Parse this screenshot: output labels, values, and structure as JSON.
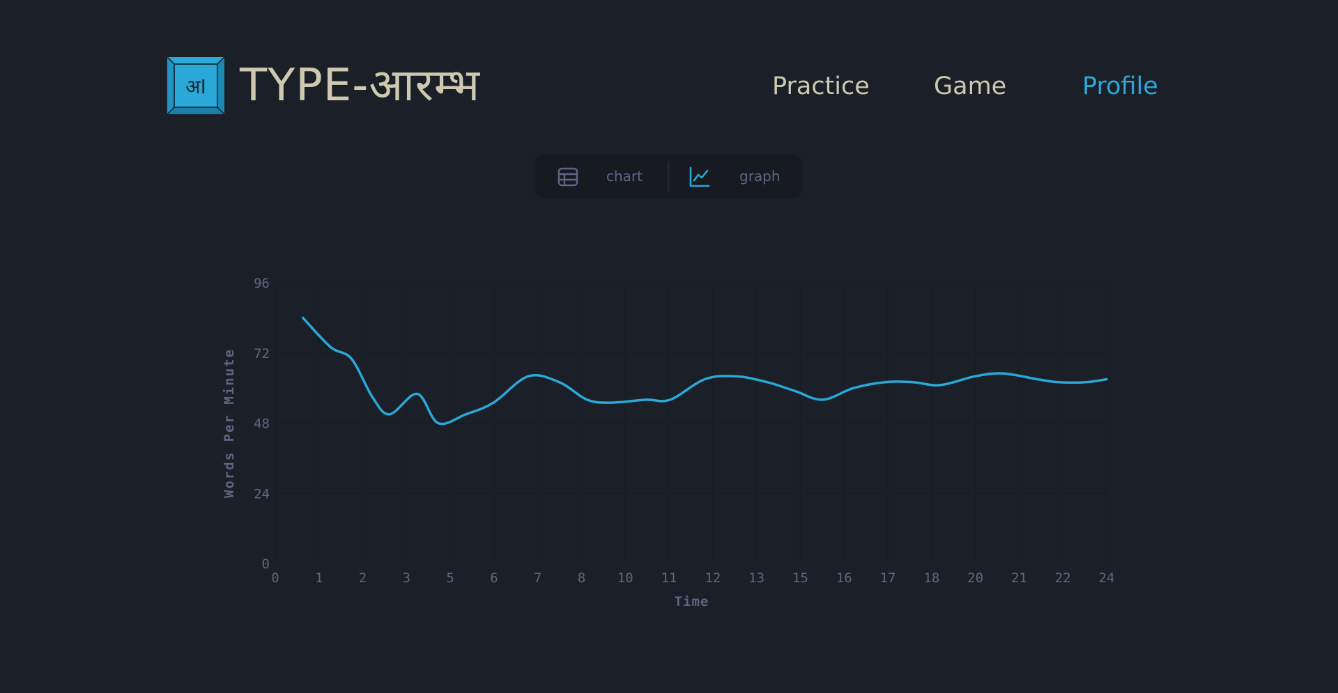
{
  "brand": {
    "name": "TYPE-आरम्भ",
    "logo_glyph": "अI"
  },
  "nav": {
    "items": [
      {
        "label": "Practice",
        "active": false
      },
      {
        "label": "Game",
        "active": false
      },
      {
        "label": "Profile",
        "active": true
      }
    ]
  },
  "view_toggle": {
    "chart_label": "chart",
    "graph_label": "graph",
    "chart_icon": "table-icon",
    "graph_icon": "line-chart-icon",
    "selected": "graph"
  },
  "colors": {
    "background": "#1b1f27",
    "accent": "#2aa8d8",
    "text": "#cfc9b1",
    "muted": "#5b6784"
  },
  "chart_data": {
    "type": "line",
    "title": "",
    "xlabel": "Time",
    "ylabel": "Words Per Minute",
    "x_ticks": [
      "0",
      "1",
      "2",
      "3",
      "5",
      "6",
      "7",
      "8",
      "10",
      "11",
      "12",
      "13",
      "15",
      "16",
      "17",
      "18",
      "20",
      "21",
      "22",
      "24"
    ],
    "ylim": [
      0,
      96
    ],
    "y_ticks": [
      0,
      24,
      48,
      72,
      96
    ],
    "grid": true,
    "legend": "none",
    "series": [
      {
        "x": [
          0.8,
          1.6,
          2.2,
          2.8,
          3.3,
          4.1,
          4.7,
          5.5,
          6.3,
          7.3,
          8.2,
          9.0,
          9.7,
          10.7,
          11.4,
          12.4,
          13.3,
          14.2,
          15.0,
          15.8,
          16.7,
          17.6,
          18.4,
          19.2,
          20.2,
          21.0,
          22.0,
          22.6,
          23.4,
          24.0
        ],
        "values": [
          84,
          74,
          70,
          57,
          51,
          58,
          48,
          51,
          55,
          64,
          62,
          56,
          55,
          56,
          56,
          63,
          64,
          62,
          59,
          56,
          60,
          62,
          62,
          61,
          64,
          65,
          63,
          62,
          62,
          63
        ]
      }
    ]
  }
}
